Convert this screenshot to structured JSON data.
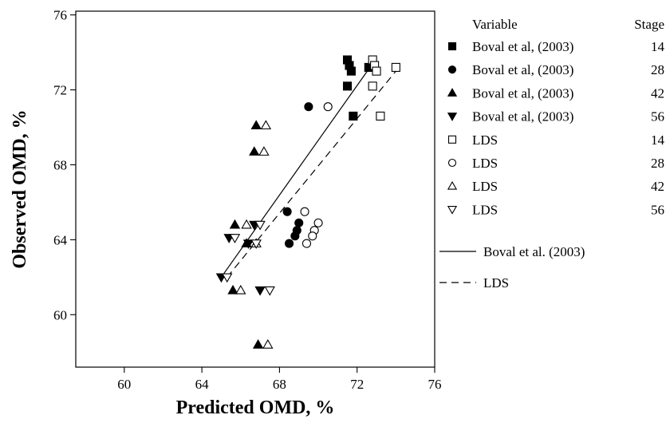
{
  "chart_data": {
    "type": "scatter",
    "xlabel": "Predicted OMD, %",
    "ylabel": "Observed OMD, %",
    "xlim": [
      57.5,
      76
    ],
    "ylim": [
      57.2,
      76.2
    ],
    "x_ticks": [
      60,
      64,
      68,
      72,
      76
    ],
    "y_ticks": [
      60,
      64,
      68,
      72,
      76
    ],
    "grid": false,
    "legend_position": "right",
    "legend_header": {
      "variable": "Variable",
      "stage": "Stage"
    },
    "series": [
      {
        "name": "Boval et al, (2003)",
        "stage": "14",
        "marker": "square",
        "filled": true,
        "points": [
          [
            71.5,
            73.6
          ],
          [
            71.6,
            73.3
          ],
          [
            71.7,
            73.0
          ],
          [
            72.6,
            73.2
          ],
          [
            71.5,
            72.2
          ],
          [
            71.8,
            70.6
          ]
        ]
      },
      {
        "name": "Boval et al, (2003)",
        "stage": "28",
        "marker": "circle",
        "filled": true,
        "points": [
          [
            69.5,
            71.1
          ],
          [
            68.4,
            65.5
          ],
          [
            69.0,
            64.9
          ],
          [
            68.9,
            64.5
          ],
          [
            68.8,
            64.2
          ],
          [
            68.5,
            63.8
          ]
        ]
      },
      {
        "name": "Boval et al, (2003)",
        "stage": "42",
        "marker": "triangle-up",
        "filled": true,
        "points": [
          [
            66.8,
            70.1
          ],
          [
            66.7,
            68.7
          ],
          [
            65.7,
            64.8
          ],
          [
            66.3,
            63.8
          ],
          [
            65.6,
            61.3
          ],
          [
            66.9,
            58.4
          ]
        ]
      },
      {
        "name": "Boval et al, (2003)",
        "stage": "56",
        "marker": "triangle-down",
        "filled": true,
        "points": [
          [
            66.7,
            64.8
          ],
          [
            65.4,
            64.1
          ],
          [
            66.4,
            63.8
          ],
          [
            65.0,
            62.0
          ],
          [
            67.0,
            61.3
          ]
        ]
      },
      {
        "name": "LDS",
        "stage": "14",
        "marker": "square",
        "filled": false,
        "points": [
          [
            72.8,
            73.6
          ],
          [
            72.9,
            73.3
          ],
          [
            73.0,
            73.0
          ],
          [
            74.0,
            73.2
          ],
          [
            72.8,
            72.2
          ],
          [
            73.2,
            70.6
          ]
        ]
      },
      {
        "name": "LDS",
        "stage": "28",
        "marker": "circle",
        "filled": false,
        "points": [
          [
            70.5,
            71.1
          ],
          [
            69.3,
            65.5
          ],
          [
            70.0,
            64.9
          ],
          [
            69.8,
            64.5
          ],
          [
            69.7,
            64.2
          ],
          [
            69.4,
            63.8
          ]
        ]
      },
      {
        "name": "LDS",
        "stage": "42",
        "marker": "triangle-up",
        "filled": false,
        "points": [
          [
            67.3,
            70.1
          ],
          [
            67.2,
            68.7
          ],
          [
            66.3,
            64.8
          ],
          [
            66.8,
            63.8
          ],
          [
            66.0,
            61.3
          ],
          [
            67.4,
            58.4
          ]
        ]
      },
      {
        "name": "LDS",
        "stage": "56",
        "marker": "triangle-down",
        "filled": false,
        "points": [
          [
            67.0,
            64.8
          ],
          [
            65.7,
            64.1
          ],
          [
            66.8,
            63.8
          ],
          [
            65.3,
            62.0
          ],
          [
            67.5,
            61.3
          ]
        ]
      }
    ],
    "fit_lines": [
      {
        "name": "Boval et al. (2003)",
        "style": "solid",
        "x": [
          65.0,
          72.8
        ],
        "y": [
          62.0,
          73.4
        ]
      },
      {
        "name": "LDS",
        "style": "dashed",
        "x": [
          65.3,
          74.0
        ],
        "y": [
          62.0,
          73.0
        ]
      }
    ]
  }
}
